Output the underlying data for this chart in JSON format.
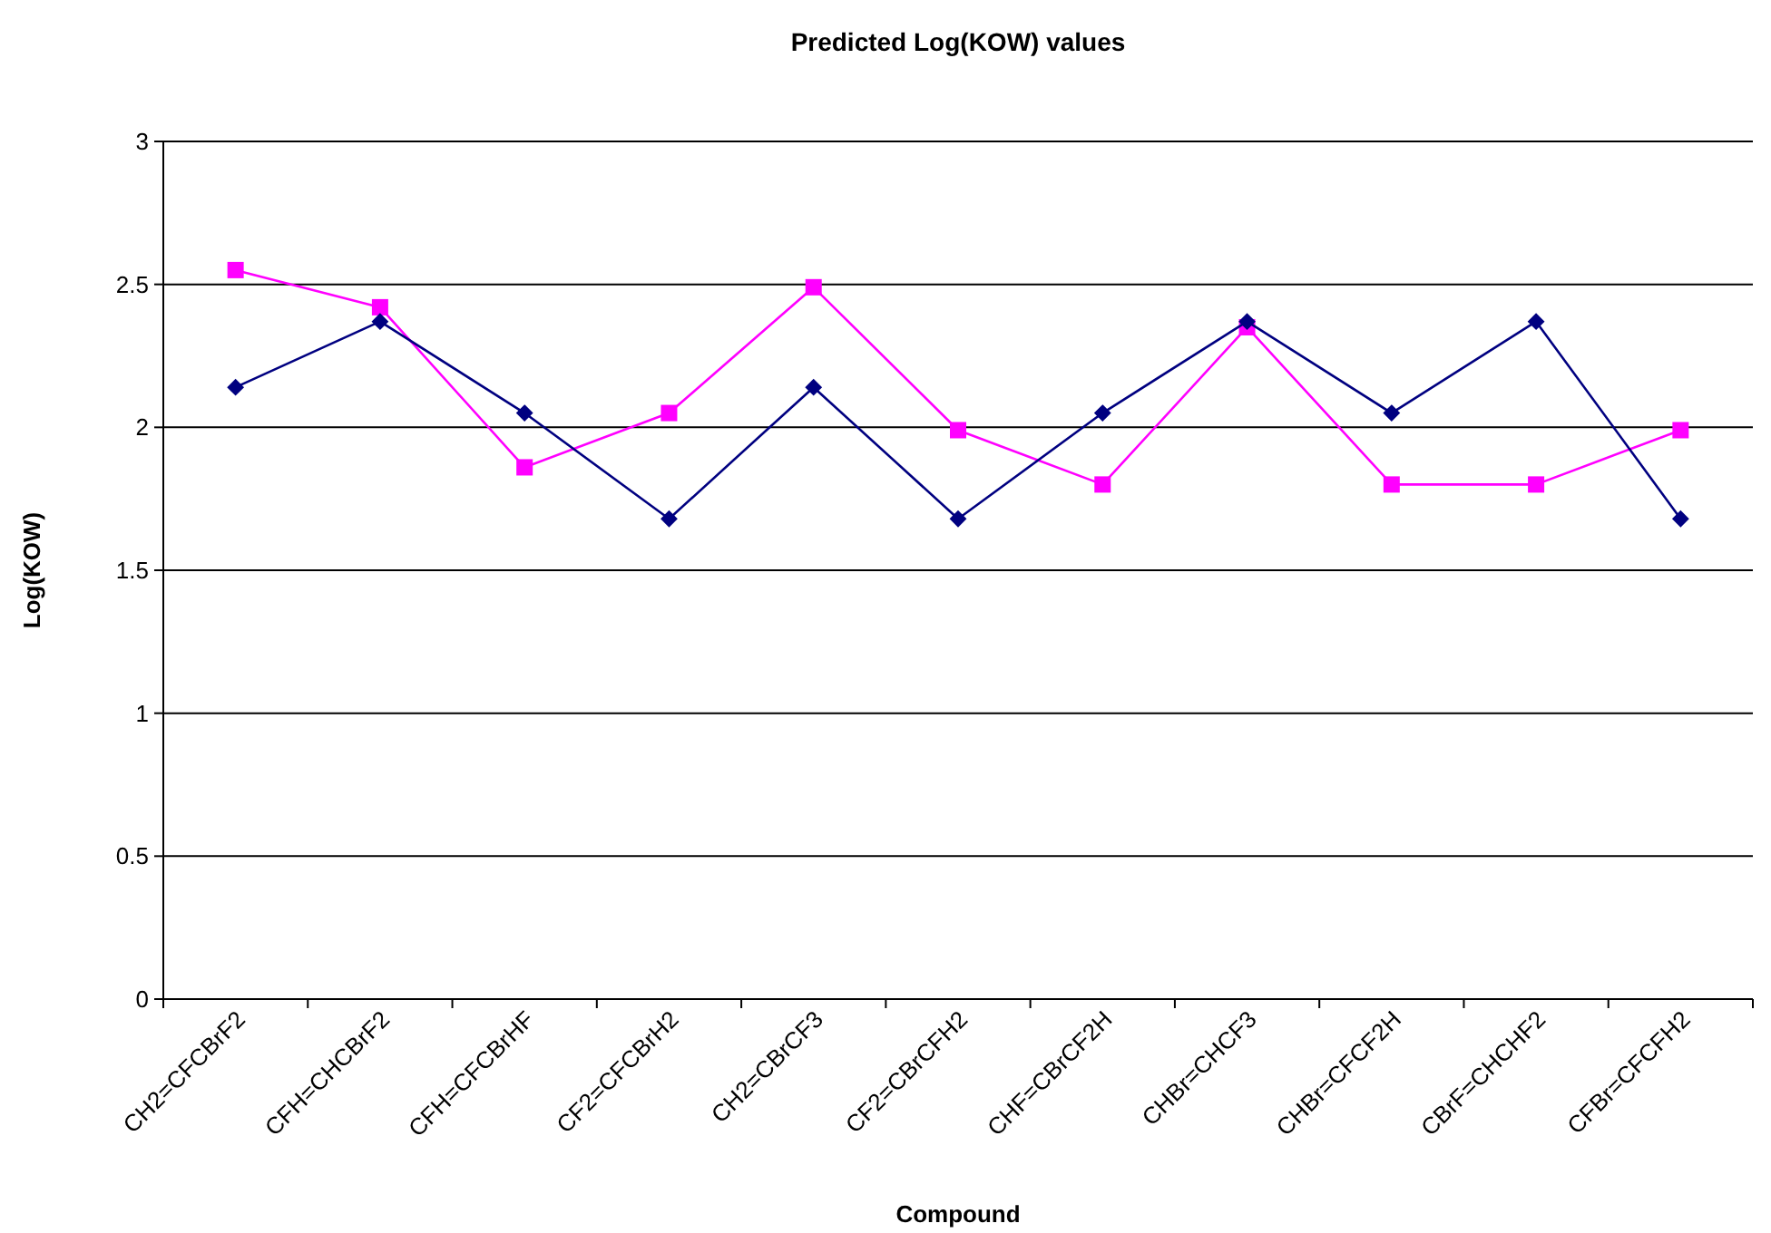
{
  "chart_data": {
    "type": "line",
    "title": "Predicted Log(KOW) values",
    "xlabel": "Compound",
    "ylabel": "Log(KOW)",
    "categories": [
      "CH2=CFCBrF2",
      "CFH=CHCBrF2",
      "CFH=CFCBrHF",
      "CF2=CFCBrH2",
      "CH2=CBrCF3",
      "CF2=CBrCFH2",
      "CHF=CBrCF2H",
      "CHBr=CHCF3",
      "CHBr=CFCF2H",
      "CBrF=CHCHF2",
      "CFBr=CFCFH2"
    ],
    "series": [
      {
        "color": "#000080",
        "marker": "diamond",
        "values": [
          2.14,
          2.37,
          2.05,
          1.68,
          2.14,
          1.68,
          2.05,
          2.37,
          2.05,
          2.37,
          1.68
        ]
      },
      {
        "color": "#ff00ff",
        "marker": "square",
        "values": [
          2.55,
          2.42,
          1.86,
          2.05,
          2.49,
          1.99,
          1.8,
          2.35,
          1.8,
          1.8,
          1.99
        ]
      }
    ],
    "ylim": [
      0,
      3
    ],
    "yticks": [
      0,
      0.5,
      1,
      1.5,
      2,
      2.5,
      3
    ],
    "grid": "y",
    "line_style": "solid"
  }
}
